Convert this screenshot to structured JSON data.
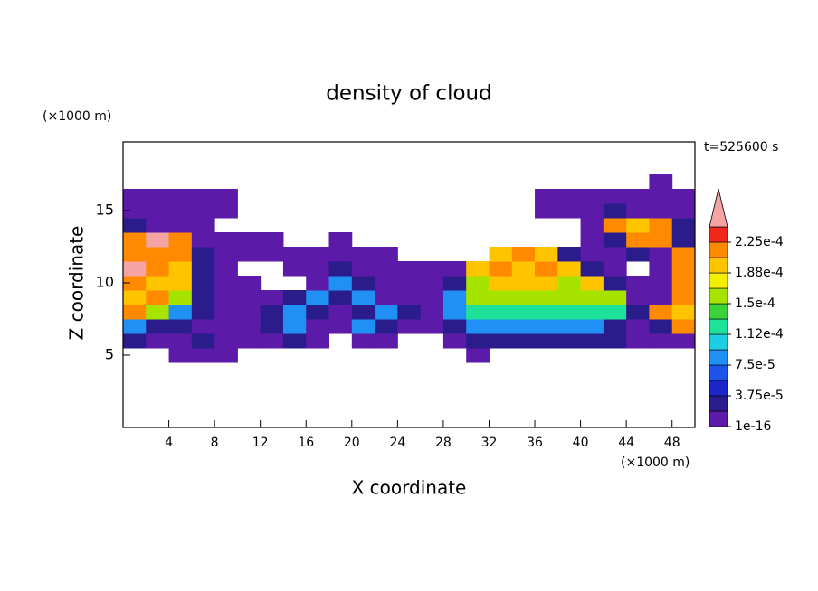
{
  "chart_data": {
    "type": "contour",
    "title": "density of cloud",
    "xlabel": "X coordinate",
    "ylabel": "Z coordinate",
    "xunit": "(×1000 m)",
    "yunit": "(×1000 m)",
    "time_label": "t=525600 s",
    "xlim": [
      0,
      50
    ],
    "ylim": [
      0,
      19.75
    ],
    "xticks": [
      4,
      8,
      12,
      16,
      20,
      24,
      28,
      32,
      36,
      40,
      44,
      48
    ],
    "yticks": [
      5,
      10,
      15
    ],
    "x": [
      1,
      3,
      5,
      7,
      9,
      11,
      13,
      15,
      17,
      19,
      21,
      23,
      25,
      27,
      29,
      31,
      33,
      35,
      37,
      39,
      41,
      43,
      45,
      47,
      49
    ],
    "y": [
      5,
      6,
      7,
      8,
      9,
      10,
      11,
      12,
      13,
      14,
      15,
      16,
      17
    ],
    "cell": [
      2,
      1
    ],
    "z": [
      [
        null,
        null,
        1e-05,
        1e-05,
        1e-05,
        null,
        null,
        null,
        null,
        null,
        null,
        null,
        null,
        null,
        null,
        1e-05,
        null,
        null,
        null,
        null,
        null,
        null,
        null,
        null,
        null
      ],
      [
        3e-05,
        1e-05,
        1e-05,
        3e-05,
        1e-05,
        1e-05,
        1e-05,
        3e-05,
        1e-05,
        null,
        1e-05,
        1e-05,
        null,
        null,
        1e-05,
        3e-05,
        3e-05,
        3e-05,
        3e-05,
        3e-05,
        3e-05,
        3e-05,
        1e-05,
        1e-05,
        1e-05
      ],
      [
        9e-05,
        3e-05,
        3e-05,
        1e-05,
        1e-05,
        1e-05,
        3e-05,
        9e-05,
        1e-05,
        1e-05,
        9e-05,
        3e-05,
        1e-05,
        1e-05,
        3e-05,
        9e-05,
        9e-05,
        9e-05,
        9e-05,
        9e-05,
        9e-05,
        3e-05,
        1e-05,
        3e-05,
        0.00022
      ],
      [
        0.00022,
        0.00016,
        9e-05,
        3e-05,
        1e-05,
        1e-05,
        3e-05,
        9e-05,
        3e-05,
        1e-05,
        3e-05,
        9e-05,
        3e-05,
        1e-05,
        9e-05,
        0.00013,
        0.00013,
        0.00013,
        0.00013,
        0.00013,
        0.00013,
        0.00013,
        3e-05,
        0.00022,
        0.00019
      ],
      [
        0.00019,
        0.00022,
        0.00016,
        3e-05,
        1e-05,
        1e-05,
        1e-05,
        3e-05,
        9e-05,
        3e-05,
        9e-05,
        1e-05,
        1e-05,
        1e-05,
        9e-05,
        0.00016,
        0.00016,
        0.00016,
        0.00016,
        0.00016,
        0.00016,
        0.00016,
        1e-05,
        1e-05,
        0.00022
      ],
      [
        0.00022,
        0.00019,
        0.00019,
        3e-05,
        1e-05,
        1e-05,
        null,
        null,
        1e-05,
        9e-05,
        3e-05,
        1e-05,
        1e-05,
        1e-05,
        3e-05,
        0.00016,
        0.00019,
        0.00019,
        0.00019,
        0.00016,
        0.00019,
        3e-05,
        1e-05,
        1e-05,
        0.00022
      ],
      [
        0.00025,
        0.00022,
        0.00019,
        3e-05,
        1e-05,
        null,
        null,
        1e-05,
        1e-05,
        3e-05,
        1e-05,
        1e-05,
        1e-05,
        1e-05,
        1e-05,
        0.00019,
        0.00022,
        0.00019,
        0.00022,
        0.00019,
        3e-05,
        1e-05,
        null,
        1e-05,
        0.00022
      ],
      [
        0.00022,
        0.00022,
        0.00022,
        3e-05,
        1e-05,
        1e-05,
        1e-05,
        1e-05,
        1e-05,
        1e-05,
        1e-05,
        1e-05,
        null,
        null,
        null,
        null,
        0.00019,
        0.00022,
        0.00019,
        3e-05,
        1e-05,
        1e-05,
        3e-05,
        1e-05,
        0.00022
      ],
      [
        0.00022,
        0.00025,
        0.00022,
        1e-05,
        1e-05,
        1e-05,
        1e-05,
        null,
        null,
        1e-05,
        null,
        null,
        null,
        null,
        null,
        null,
        null,
        null,
        null,
        null,
        1e-05,
        3e-05,
        0.00022,
        0.00022,
        3e-05
      ],
      [
        3e-05,
        1e-05,
        1e-05,
        1e-05,
        null,
        null,
        null,
        null,
        null,
        null,
        null,
        null,
        null,
        null,
        null,
        null,
        null,
        null,
        null,
        null,
        1e-05,
        0.00022,
        0.00019,
        0.00022,
        3e-05
      ],
      [
        1e-05,
        1e-05,
        1e-05,
        1e-05,
        1e-05,
        null,
        null,
        null,
        null,
        null,
        null,
        null,
        null,
        null,
        null,
        null,
        null,
        null,
        1e-05,
        1e-05,
        1e-05,
        3e-05,
        1e-05,
        1e-05,
        1e-05
      ],
      [
        1e-05,
        1e-05,
        1e-05,
        1e-05,
        1e-05,
        null,
        null,
        null,
        null,
        null,
        null,
        null,
        null,
        null,
        null,
        null,
        null,
        null,
        1e-05,
        1e-05,
        1e-05,
        1e-05,
        1e-05,
        1e-05,
        1e-05
      ],
      [
        null,
        null,
        null,
        null,
        null,
        null,
        null,
        null,
        null,
        null,
        null,
        null,
        null,
        null,
        null,
        null,
        null,
        null,
        null,
        null,
        null,
        null,
        null,
        1e-05,
        null
      ]
    ],
    "clim": [
      1e-16,
      0.00024375
    ],
    "colors": [
      "#5b1aa8",
      "#2b1c8c",
      "#1a26c8",
      "#1d55ea",
      "#2090f4",
      "#1ccde4",
      "#1ee29a",
      "#3cd23c",
      "#a6e400",
      "#f2f000",
      "#ffc400",
      "#ff8a00",
      "#f0281a"
    ],
    "over_color": "#f5a3a3",
    "cticks": [
      {
        "value": 1e-16,
        "label": "1e-16"
      },
      {
        "value": 3.75e-05,
        "label": "3.75e-5"
      },
      {
        "value": 7.5e-05,
        "label": "7.5e-5"
      },
      {
        "value": 0.0001125,
        "label": "1.12e-4"
      },
      {
        "value": 0.00015,
        "label": "1.5e-4"
      },
      {
        "value": 0.0001875,
        "label": "1.88e-4"
      },
      {
        "value": 0.000225,
        "label": "2.25e-4"
      }
    ]
  }
}
